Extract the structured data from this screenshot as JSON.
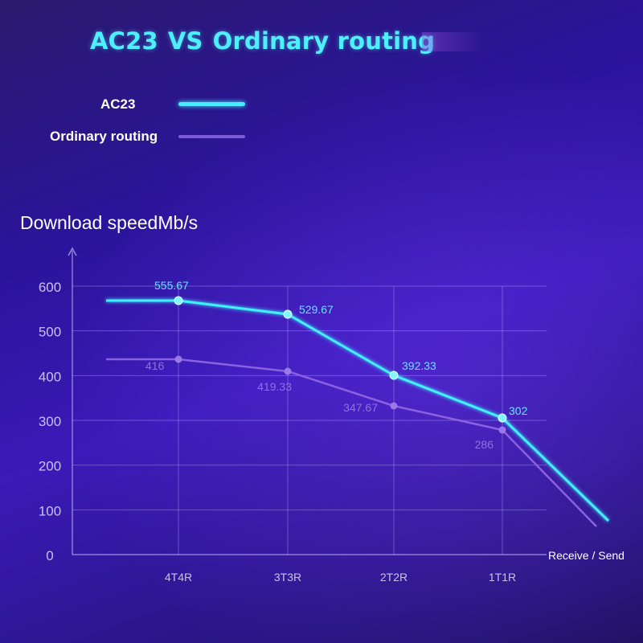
{
  "title_left": "AC23",
  "title_vs": "VS",
  "title_right": "Ordinary routing",
  "legend": [
    {
      "label": "AC23",
      "color": "#40f0ff"
    },
    {
      "label": "Ordinary routing",
      "color": "#7e5ad8"
    }
  ],
  "chart_data": {
    "type": "line",
    "ylabel": "Download speedMb/s",
    "xlabel": "Receive / Send",
    "categories": [
      "4T4R",
      "3T3R",
      "2T2R",
      "1T1R"
    ],
    "yticks": [
      0,
      100,
      200,
      300,
      400,
      500,
      600
    ],
    "ylim": [
      0,
      600
    ],
    "grid": true,
    "legend_position": "top-left",
    "series": [
      {
        "name": "AC23",
        "values": [
          555.67,
          529.67,
          392.33,
          302
        ],
        "labels": [
          "555.67",
          "529.67",
          "392.33",
          "302"
        ],
        "color": "#40f0ff"
      },
      {
        "name": "Ordinary routing",
        "values": [
          416,
          419.33,
          347.67,
          286
        ],
        "labels": [
          "416",
          "419.33",
          "347.67",
          "286"
        ],
        "color": "#8a62e0"
      }
    ]
  }
}
